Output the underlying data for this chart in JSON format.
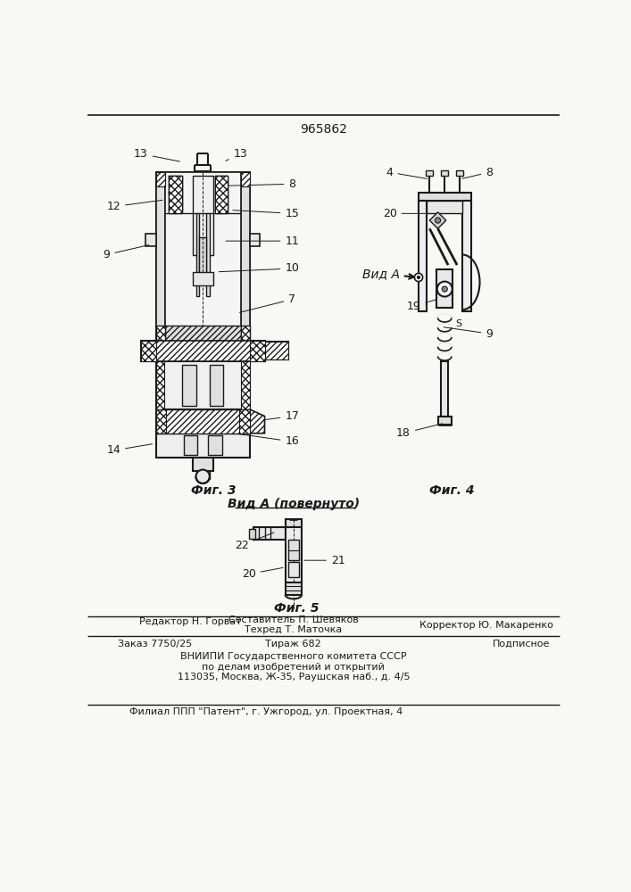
{
  "patent_number": "965862",
  "background_color": "#f8f8f5",
  "line_color": "#1a1a1a",
  "bottom_section": {
    "line1_editor": "Редактор Н. Горват",
    "line1_compiler": "Составитель П. Шевяков",
    "line1_tech": "Техред Т. Маточка",
    "line1_corrector": "Корректор Ю. Макаренко",
    "line2_order": "Заказ 7750/25",
    "line2_tirazh": "Тираж 682",
    "line2_podpisnoe": "Подписное",
    "line3": "ВНИИПИ Государственного комитета СССР",
    "line4": "по делам изобретений и открытий",
    "line5": "113035, Москва, Ж-35, Раушская наб., д. 4/5",
    "line6": "Филиал ППП \"Патент\", г. Ужгород, ул. Проектная, 4"
  },
  "fig3_caption": "Фиг. 3",
  "fig4_caption": "Фиг. 4",
  "fig5_caption": "Фиг. 5",
  "vid_a_label": "Вид А",
  "vid_a_povernuto": "Вид А (повернуто)"
}
